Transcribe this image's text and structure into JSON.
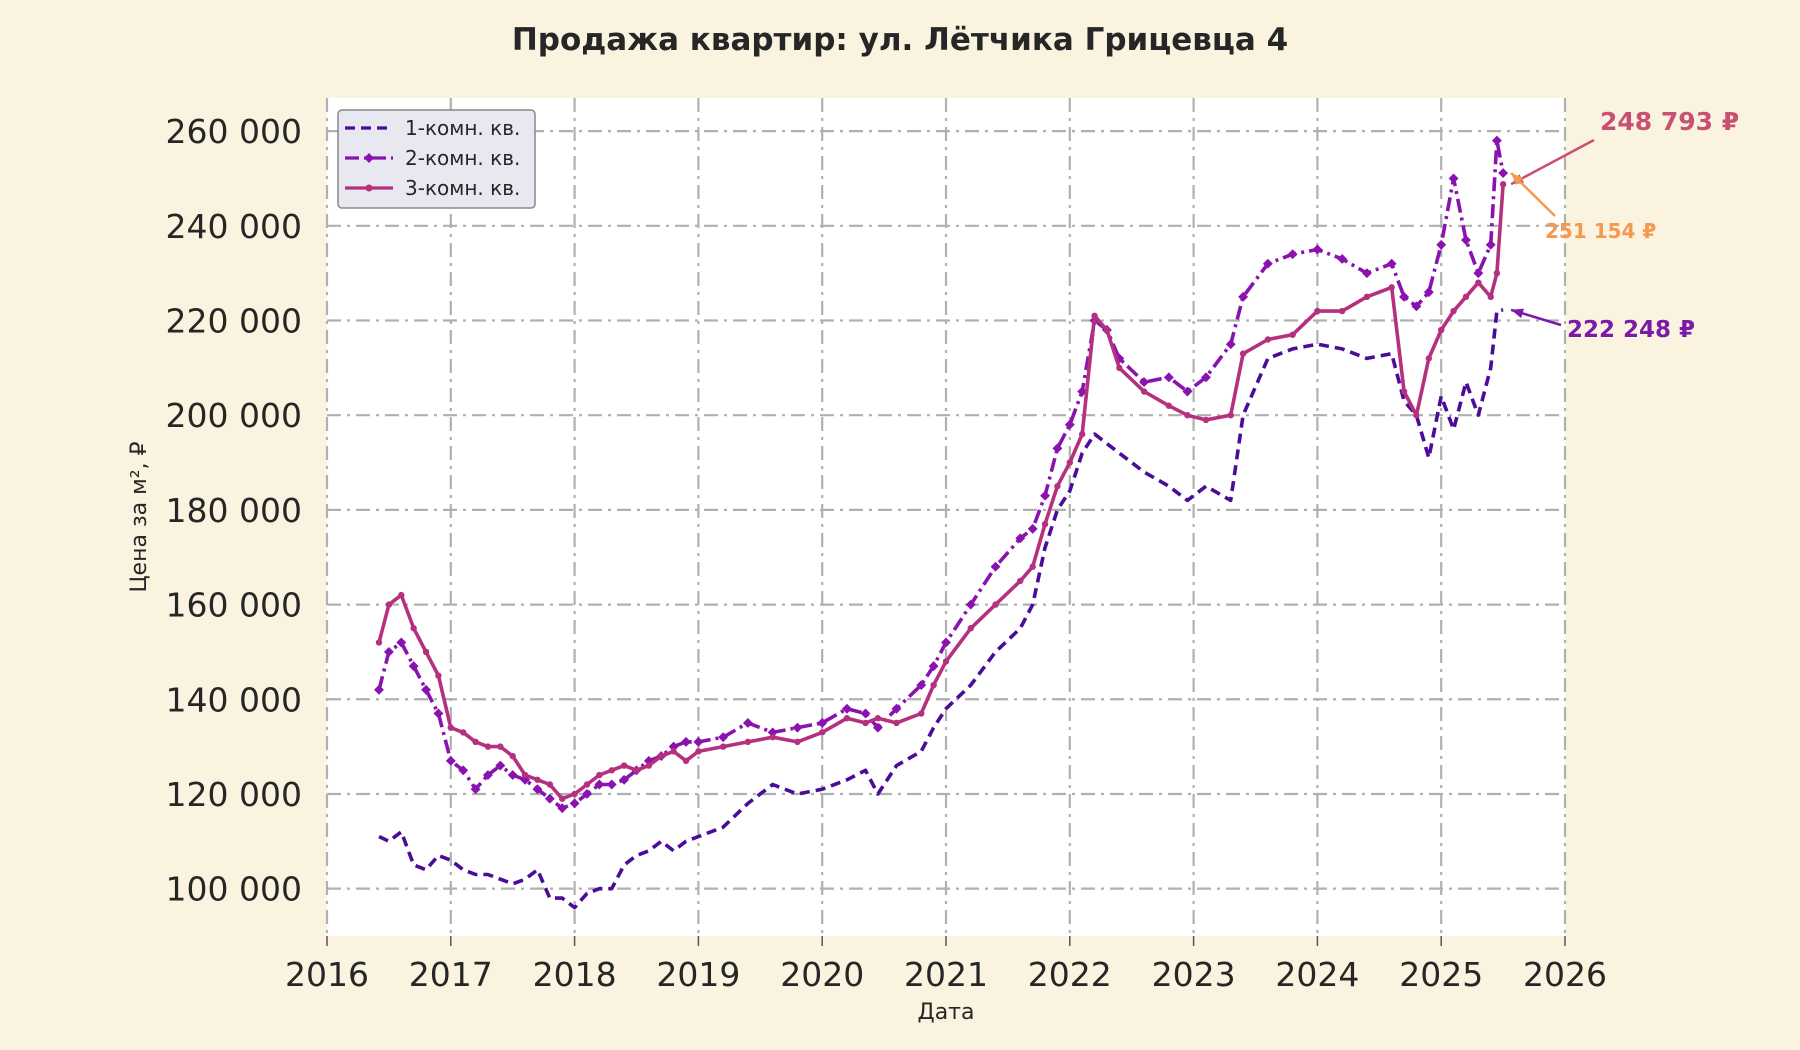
{
  "chart_data": {
    "type": "line",
    "title": "Продажа квартир: ул. Лётчика Грицевца 4",
    "xlabel": "Дата",
    "ylabel": "Цена за м², ₽",
    "xlim": [
      2016.0,
      2026.0
    ],
    "ylim": [
      90000,
      267000
    ],
    "x_ticks": [
      "2016",
      "2017",
      "2018",
      "2019",
      "2020",
      "2021",
      "2022",
      "2023",
      "2024",
      "2025",
      "2026"
    ],
    "y_ticks": [
      "100 000",
      "120 000",
      "140 000",
      "160 000",
      "180 000",
      "200 000",
      "220 000",
      "240 000",
      "260 000"
    ],
    "grid": true,
    "legend_position": "top-left",
    "series": [
      {
        "name": "1-комн. кв.",
        "color": "#4b0c9a",
        "style": "dashed",
        "x": [
          2016.42,
          2016.5,
          2016.6,
          2016.7,
          2016.8,
          2016.9,
          2017.0,
          2017.1,
          2017.2,
          2017.3,
          2017.4,
          2017.5,
          2017.6,
          2017.7,
          2017.8,
          2017.9,
          2018.0,
          2018.1,
          2018.2,
          2018.3,
          2018.4,
          2018.5,
          2018.6,
          2018.7,
          2018.8,
          2018.9,
          2019.0,
          2019.2,
          2019.4,
          2019.6,
          2019.8,
          2020.0,
          2020.2,
          2020.35,
          2020.45,
          2020.6,
          2020.8,
          2020.9,
          2021.0,
          2021.2,
          2021.4,
          2021.6,
          2021.7,
          2021.8,
          2021.9,
          2022.0,
          2022.1,
          2022.2,
          2022.3,
          2022.4,
          2022.6,
          2022.8,
          2022.95,
          2023.1,
          2023.3,
          2023.4,
          2023.6,
          2023.8,
          2024.0,
          2024.2,
          2024.4,
          2024.6,
          2024.7,
          2024.8,
          2024.9,
          2025.0,
          2025.1,
          2025.2,
          2025.3,
          2025.4,
          2025.45,
          2025.5
        ],
        "values": [
          111000,
          110000,
          112000,
          105000,
          104000,
          107000,
          106000,
          104000,
          103000,
          103000,
          102000,
          101000,
          102000,
          104000,
          98000,
          98000,
          96000,
          99000,
          100000,
          100000,
          105000,
          107000,
          108000,
          110000,
          108000,
          110000,
          111000,
          113000,
          118000,
          122000,
          120000,
          121000,
          123000,
          125000,
          120000,
          126000,
          129000,
          134000,
          138000,
          143000,
          150000,
          155000,
          160000,
          172000,
          180000,
          184000,
          192000,
          196000,
          194000,
          192000,
          188000,
          185000,
          182000,
          185000,
          182000,
          200000,
          212000,
          214000,
          215000,
          214000,
          212000,
          213000,
          203000,
          200000,
          191000,
          204000,
          197000,
          207000,
          200000,
          210000,
          222000,
          222248
        ]
      },
      {
        "name": "2-комн. кв.",
        "color": "#8a13b0",
        "style": "dashdot",
        "x": [
          2016.42,
          2016.5,
          2016.6,
          2016.7,
          2016.8,
          2016.9,
          2017.0,
          2017.1,
          2017.2,
          2017.3,
          2017.4,
          2017.5,
          2017.6,
          2017.7,
          2017.8,
          2017.9,
          2018.0,
          2018.1,
          2018.2,
          2018.3,
          2018.4,
          2018.5,
          2018.6,
          2018.7,
          2018.8,
          2018.9,
          2019.0,
          2019.2,
          2019.4,
          2019.6,
          2019.8,
          2020.0,
          2020.2,
          2020.35,
          2020.45,
          2020.6,
          2020.8,
          2020.9,
          2021.0,
          2021.2,
          2021.4,
          2021.6,
          2021.7,
          2021.8,
          2021.9,
          2022.0,
          2022.1,
          2022.2,
          2022.3,
          2022.4,
          2022.6,
          2022.8,
          2022.95,
          2023.1,
          2023.3,
          2023.4,
          2023.6,
          2023.8,
          2024.0,
          2024.2,
          2024.4,
          2024.6,
          2024.7,
          2024.8,
          2024.9,
          2025.0,
          2025.1,
          2025.2,
          2025.3,
          2025.4,
          2025.45,
          2025.5
        ],
        "values": [
          142000,
          150000,
          152000,
          147000,
          142000,
          137000,
          127000,
          125000,
          121000,
          124000,
          126000,
          124000,
          123000,
          121000,
          119000,
          117000,
          118000,
          120000,
          122000,
          122000,
          123000,
          125000,
          127000,
          128000,
          130000,
          131000,
          131000,
          132000,
          135000,
          133000,
          134000,
          135000,
          138000,
          137000,
          134000,
          138000,
          143000,
          147000,
          152000,
          160000,
          168000,
          174000,
          176000,
          183000,
          193000,
          198000,
          205000,
          220000,
          218000,
          212000,
          207000,
          208000,
          205000,
          208000,
          215000,
          225000,
          232000,
          234000,
          235000,
          233000,
          230000,
          232000,
          225000,
          223000,
          226000,
          236000,
          250000,
          237000,
          230000,
          236000,
          258000,
          251154
        ]
      },
      {
        "name": "3-комн. кв.",
        "color": "#b5307f",
        "style": "solid",
        "x": [
          2016.42,
          2016.5,
          2016.6,
          2016.7,
          2016.8,
          2016.9,
          2017.0,
          2017.1,
          2017.2,
          2017.3,
          2017.4,
          2017.5,
          2017.6,
          2017.7,
          2017.8,
          2017.9,
          2018.0,
          2018.1,
          2018.2,
          2018.3,
          2018.4,
          2018.5,
          2018.6,
          2018.7,
          2018.8,
          2018.9,
          2019.0,
          2019.2,
          2019.4,
          2019.6,
          2019.8,
          2020.0,
          2020.2,
          2020.35,
          2020.45,
          2020.6,
          2020.8,
          2020.9,
          2021.0,
          2021.2,
          2021.4,
          2021.6,
          2021.7,
          2021.8,
          2021.9,
          2022.0,
          2022.1,
          2022.2,
          2022.3,
          2022.4,
          2022.6,
          2022.8,
          2022.95,
          2023.1,
          2023.3,
          2023.4,
          2023.6,
          2023.8,
          2024.0,
          2024.2,
          2024.4,
          2024.6,
          2024.7,
          2024.8,
          2024.9,
          2025.0,
          2025.1,
          2025.2,
          2025.3,
          2025.4,
          2025.45,
          2025.5
        ],
        "values": [
          152000,
          160000,
          162000,
          155000,
          150000,
          145000,
          134000,
          133000,
          131000,
          130000,
          130000,
          128000,
          124000,
          123000,
          122000,
          119000,
          120000,
          122000,
          124000,
          125000,
          126000,
          125000,
          126000,
          128000,
          129000,
          127000,
          129000,
          130000,
          131000,
          132000,
          131000,
          133000,
          136000,
          135000,
          136000,
          135000,
          137000,
          143000,
          148000,
          155000,
          160000,
          165000,
          168000,
          177000,
          185000,
          190000,
          196000,
          221000,
          218000,
          210000,
          205000,
          202000,
          200000,
          199000,
          200000,
          213000,
          216000,
          217000,
          222000,
          222000,
          225000,
          227000,
          205000,
          200000,
          212000,
          218000,
          222000,
          225000,
          228000,
          225000,
          230000,
          248793
        ]
      }
    ],
    "annotations": [
      {
        "text": "248 793 ₽",
        "series": "3-комн. кв.",
        "color": "#c94f73",
        "x": 2025.5,
        "y": 248793
      },
      {
        "text": "251 154 ₽",
        "series": "2-комн. кв.",
        "color": "#f39a4f",
        "x": 2025.5,
        "y": 251154
      },
      {
        "text": "222 248 ₽",
        "series": "1-комн. кв.",
        "color": "#7a1aa6",
        "x": 2025.5,
        "y": 222248
      }
    ]
  }
}
